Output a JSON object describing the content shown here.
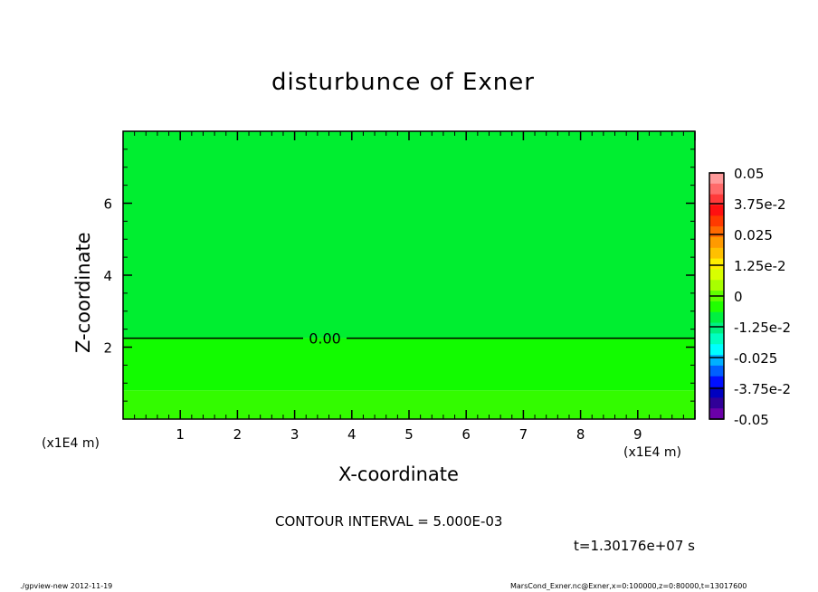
{
  "chart_data": {
    "type": "heatmap",
    "title": "disturbunce of Exner",
    "xlabel": "X-coordinate",
    "ylabel": "Z-coordinate",
    "xunit": "(x1E4 m)",
    "yunit": "(x1E4 m)",
    "xlim": [
      0,
      10
    ],
    "ylim": [
      0,
      8
    ],
    "xticks": [
      1,
      2,
      3,
      4,
      5,
      6,
      7,
      8,
      9
    ],
    "yticks": [
      2,
      4,
      6
    ],
    "regions": [
      {
        "z_range": [
          0,
          0.8
        ],
        "color": "#33fb00"
      },
      {
        "z_range": [
          0.8,
          2.25
        ],
        "color": "#12fb00"
      },
      {
        "z_range": [
          2.25,
          8
        ],
        "color": "#00ee30"
      }
    ],
    "contours": [
      {
        "level_label": "0.00",
        "z": 2.25
      }
    ],
    "colorbar": {
      "range": [
        -0.05,
        0.05
      ],
      "labels": [
        "0.05",
        "3.75e-2",
        "0.025",
        "1.25e-2",
        "0",
        "-1.25e-2",
        "-0.025",
        "-3.75e-2",
        "-0.05"
      ],
      "label_values": [
        0.05,
        0.0375,
        0.025,
        0.0125,
        0,
        -0.0125,
        -0.025,
        -0.0375,
        -0.05
      ],
      "colors": [
        "#ff9a9a",
        "#ff6a6a",
        "#ff3a3a",
        "#ff1010",
        "#ff3a00",
        "#ff6a00",
        "#ff9a00",
        "#ffc000",
        "#ffee00",
        "#d8ff00",
        "#a8ff00",
        "#60ff00",
        "#20ff00",
        "#00f040",
        "#00f080",
        "#00ffc0",
        "#00ffff",
        "#00b0ff",
        "#0060ff",
        "#0010ff",
        "#0000c0",
        "#300098",
        "#6a00a8"
      ]
    },
    "contour_interval": "CONTOUR INTERVAL = 5.000E-03",
    "time_label": "t=1.30176e+07 s"
  },
  "footer": {
    "left": "./gpview-new  2012-11-19",
    "right": "MarsCond_Exner.nc@Exner,x=0:100000,z=0:80000,t=13017600"
  }
}
